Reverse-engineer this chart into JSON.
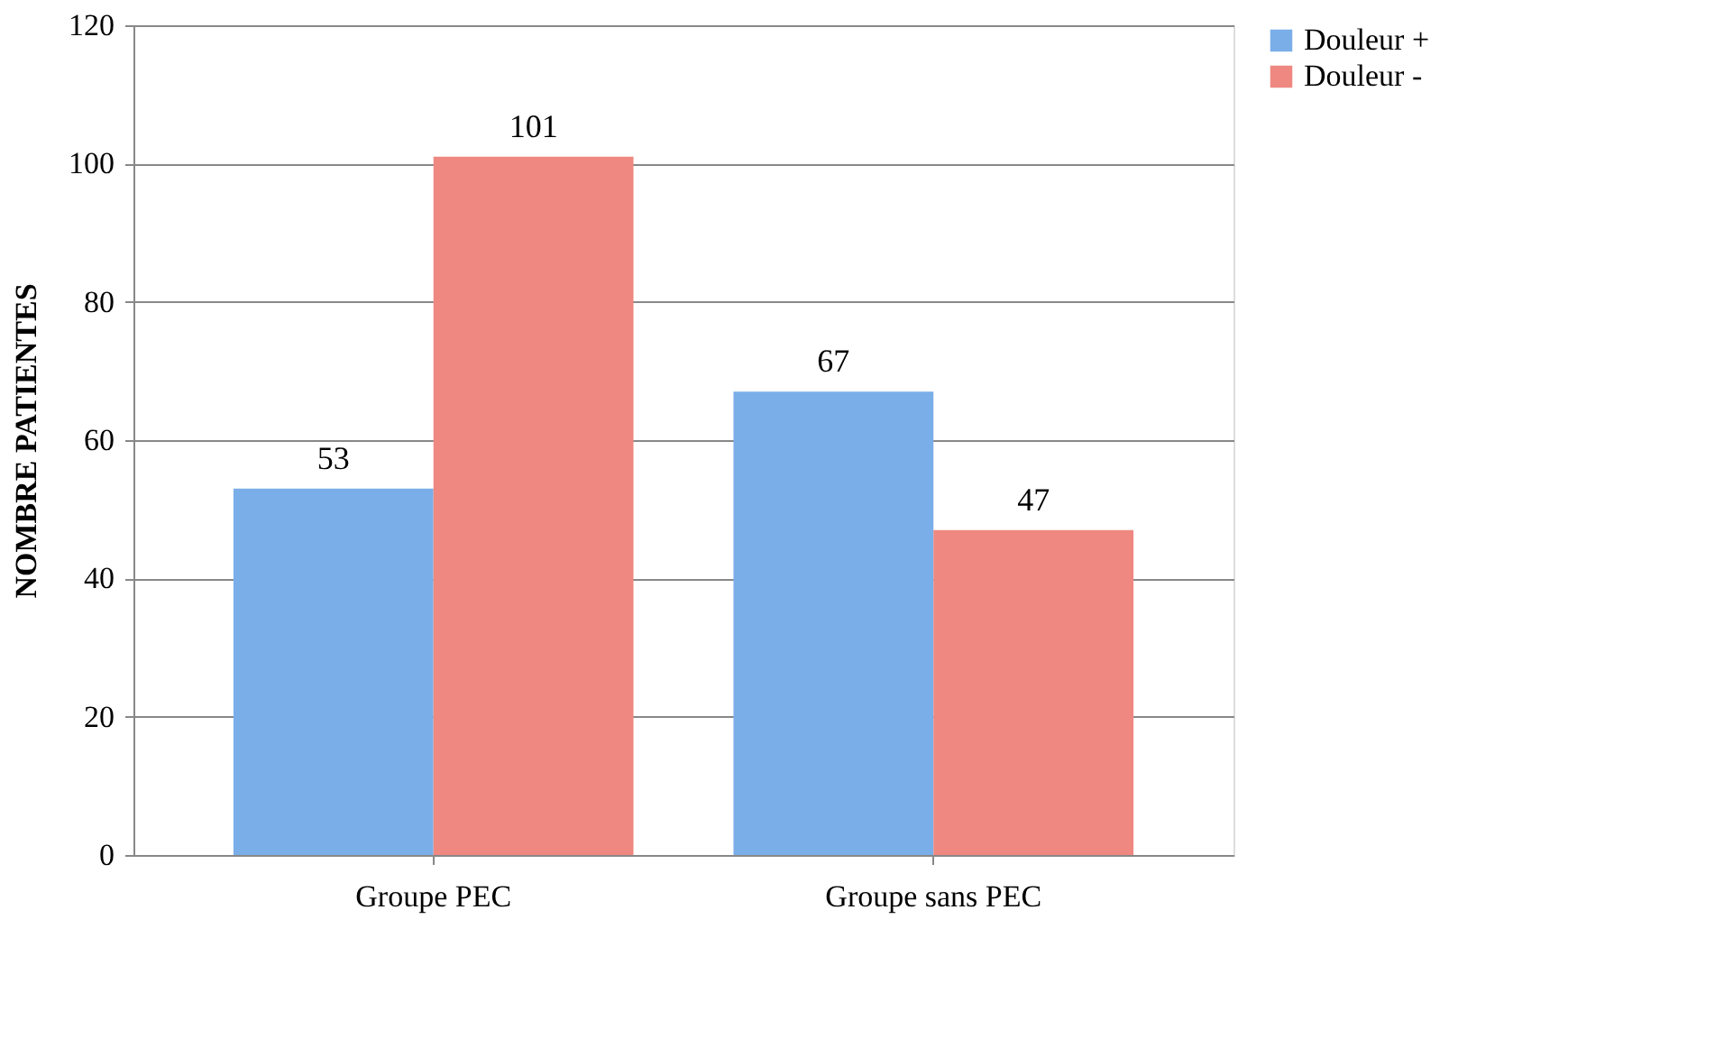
{
  "chart_data": {
    "type": "bar",
    "ylabel": "NOMBRE PATIENTES",
    "categories": [
      "Groupe PEC",
      "Groupe sans PEC"
    ],
    "series": [
      {
        "name": "Douleur +",
        "color": "#7aaee8",
        "values": [
          53,
          67
        ]
      },
      {
        "name": "Douleur -",
        "color": "#ee8880",
        "values": [
          101,
          47
        ]
      }
    ],
    "ylim": [
      0,
      120
    ],
    "yticks": [
      0,
      20,
      40,
      60,
      80,
      100,
      120
    ],
    "grid": "y",
    "legend": "right",
    "data_labels": true
  }
}
